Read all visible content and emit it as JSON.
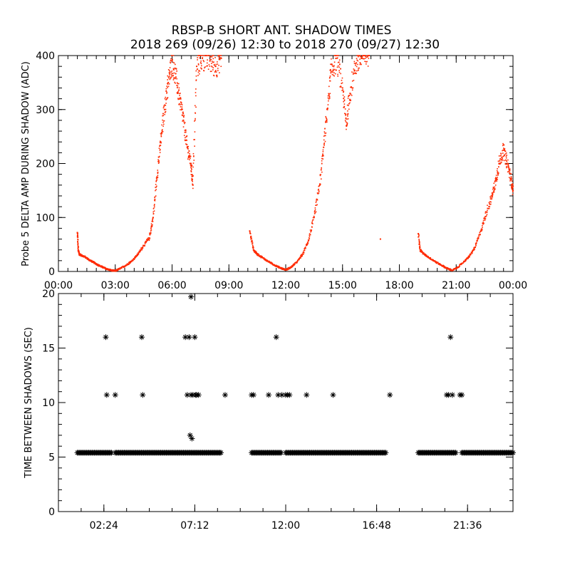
{
  "title_line1": "RBSP-B SHORT ANT. SHADOW TIMES",
  "title_line2": "2018 269 (09/26) 12:30 to 2018 270 (09/27) 12:30",
  "colors": {
    "top_points": "#ff2a00",
    "bottom_points": "#000000",
    "axes": "#000000"
  },
  "chart_data": [
    {
      "type": "scatter",
      "ylabel": "Probe 5 DELTA AMP DURING SHADOW (ADC)",
      "xlabel": "",
      "x_units": "hours",
      "xlim": [
        0,
        24
      ],
      "ylim": [
        0,
        400
      ],
      "xticks": [
        0,
        3,
        6,
        9,
        12,
        15,
        18,
        21,
        24
      ],
      "xtick_labels": [
        "00:00",
        "03:00",
        "06:00",
        "09:00",
        "12:00",
        "15:00",
        "18:00",
        "21:00",
        "00:00"
      ],
      "yticks": [
        0,
        100,
        200,
        300,
        400
      ],
      "ytick_labels": [
        "0",
        "100",
        "200",
        "300",
        "400"
      ],
      "series": [
        {
          "color": "#ff2a00",
          "points": [
            [
              1.0,
              72
            ],
            [
              1.05,
              40
            ],
            [
              1.1,
              32
            ],
            [
              1.2,
              30
            ],
            [
              1.4,
              27
            ],
            [
              1.6,
              22
            ],
            [
              1.8,
              18
            ],
            [
              2.0,
              14
            ],
            [
              2.2,
              10
            ],
            [
              2.4,
              7
            ],
            [
              2.6,
              4
            ],
            [
              2.8,
              2
            ],
            [
              3.0,
              1
            ],
            [
              3.3,
              6
            ],
            [
              3.6,
              12
            ],
            [
              3.9,
              20
            ],
            [
              4.2,
              32
            ],
            [
              4.5,
              48
            ],
            [
              4.8,
              62
            ],
            [
              5.0,
              100
            ],
            [
              5.2,
              175
            ],
            [
              5.4,
              240
            ],
            [
              5.6,
              300
            ],
            [
              5.8,
              350
            ],
            [
              6.0,
              390
            ],
            [
              6.2,
              360
            ],
            [
              6.4,
              320
            ],
            [
              6.6,
              280
            ],
            [
              6.8,
              230
            ],
            [
              7.0,
              200
            ],
            [
              7.1,
              160
            ],
            [
              7.3,
              380
            ],
            [
              7.6,
              395
            ],
            [
              8.0,
              390
            ],
            [
              8.3,
              380
            ],
            [
              8.6,
              395
            ],
            [
              10.1,
              75
            ],
            [
              10.3,
              40
            ],
            [
              10.5,
              32
            ],
            [
              10.8,
              25
            ],
            [
              11.1,
              18
            ],
            [
              11.4,
              12
            ],
            [
              11.7,
              7
            ],
            [
              12.0,
              3
            ],
            [
              12.3,
              8
            ],
            [
              12.6,
              18
            ],
            [
              12.9,
              32
            ],
            [
              13.2,
              58
            ],
            [
              13.5,
              100
            ],
            [
              13.8,
              160
            ],
            [
              14.0,
              230
            ],
            [
              14.2,
              300
            ],
            [
              14.4,
              370
            ],
            [
              14.7,
              395
            ],
            [
              15.0,
              340
            ],
            [
              15.2,
              270
            ],
            [
              15.4,
              330
            ],
            [
              15.7,
              385
            ],
            [
              16.0,
              395
            ],
            [
              16.4,
              400
            ],
            [
              17.0,
              60
            ],
            [
              19.0,
              70
            ],
            [
              19.1,
              40
            ],
            [
              19.3,
              32
            ],
            [
              19.6,
              25
            ],
            [
              19.9,
              18
            ],
            [
              20.2,
              12
            ],
            [
              20.5,
              6
            ],
            [
              20.8,
              2
            ],
            [
              21.1,
              8
            ],
            [
              21.4,
              18
            ],
            [
              21.7,
              28
            ],
            [
              22.0,
              45
            ],
            [
              22.3,
              75
            ],
            [
              22.6,
              110
            ],
            [
              22.9,
              140
            ],
            [
              23.1,
              170
            ],
            [
              23.3,
              205
            ],
            [
              23.5,
              225
            ],
            [
              23.7,
              200
            ],
            [
              23.9,
              170
            ],
            [
              24.0,
              150
            ]
          ]
        }
      ]
    },
    {
      "type": "scatter",
      "ylabel": "TIME BETWEEN SHADOWS (SEC)",
      "xlabel": "",
      "x_units": "hours",
      "xlim": [
        0,
        24
      ],
      "ylim": [
        0,
        20
      ],
      "xticks": [
        2.4,
        7.2,
        12.0,
        16.8,
        21.6
      ],
      "xtick_labels": [
        "02:24",
        "07:12",
        "12:00",
        "16:48",
        "21:36"
      ],
      "yticks": [
        0,
        5,
        10,
        15,
        20
      ],
      "ytick_labels": [
        "0",
        "5",
        "10",
        "15",
        "20"
      ],
      "series": [
        {
          "color": "#000000",
          "marker": "asterisk",
          "baseline_runs": [
            {
              "y": 5.4,
              "from": 1.0,
              "to": 2.8
            },
            {
              "y": 5.4,
              "from": 3.0,
              "to": 8.6
            },
            {
              "y": 5.4,
              "from": 10.2,
              "to": 11.8
            },
            {
              "y": 5.4,
              "from": 12.0,
              "to": 17.3
            },
            {
              "y": 5.4,
              "from": 19.0,
              "to": 21.0
            },
            {
              "y": 5.4,
              "from": 21.3,
              "to": 24.0
            }
          ],
          "points": [
            [
              2.5,
              16.0
            ],
            [
              2.55,
              10.7
            ],
            [
              3.0,
              10.7
            ],
            [
              4.4,
              16.0
            ],
            [
              4.45,
              10.7
            ],
            [
              6.7,
              16.0
            ],
            [
              6.8,
              10.7
            ],
            [
              6.9,
              16.0
            ],
            [
              7.0,
              10.7
            ],
            [
              7.1,
              10.7
            ],
            [
              7.2,
              16.0
            ],
            [
              7.25,
              10.7
            ],
            [
              7.3,
              10.7
            ],
            [
              7.4,
              10.7
            ],
            [
              7.0,
              19.7
            ],
            [
              6.95,
              7.0
            ],
            [
              7.05,
              6.7
            ],
            [
              8.8,
              10.7
            ],
            [
              10.2,
              10.7
            ],
            [
              10.3,
              10.7
            ],
            [
              11.1,
              10.7
            ],
            [
              11.5,
              16.0
            ],
            [
              11.6,
              10.7
            ],
            [
              11.8,
              10.7
            ],
            [
              12.0,
              10.7
            ],
            [
              12.1,
              10.7
            ],
            [
              12.2,
              10.7
            ],
            [
              13.1,
              10.7
            ],
            [
              14.5,
              10.7
            ],
            [
              17.5,
              10.7
            ],
            [
              20.5,
              10.7
            ],
            [
              20.6,
              10.7
            ],
            [
              20.7,
              16.0
            ],
            [
              20.8,
              10.7
            ],
            [
              21.2,
              10.7
            ],
            [
              21.3,
              10.7
            ]
          ]
        }
      ]
    }
  ]
}
